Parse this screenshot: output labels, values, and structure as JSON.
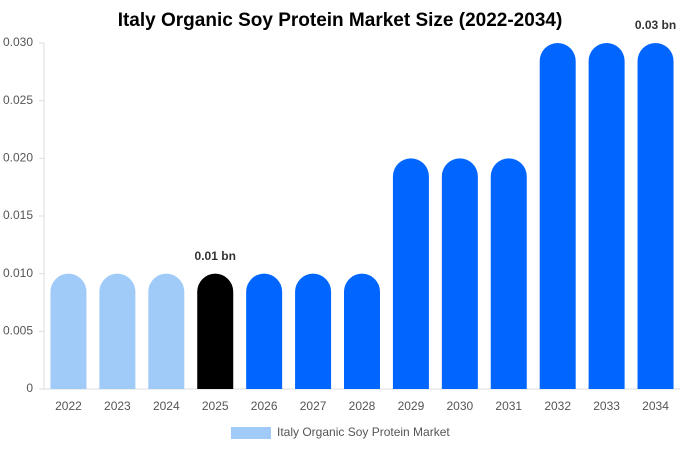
{
  "chart_data": {
    "type": "bar",
    "title": "Italy Organic Soy Protein Market Size (2022-2034)",
    "categories": [
      "2022",
      "2023",
      "2024",
      "2025",
      "2026",
      "2027",
      "2028",
      "2029",
      "2030",
      "2031",
      "2032",
      "2033",
      "2034"
    ],
    "series": [
      {
        "name": "Italy Organic Soy Protein Market",
        "color": "#a0cbf9",
        "values": [
          0.01,
          0.01,
          0.01,
          0.01,
          0.01,
          0.01,
          0.01,
          0.02,
          0.02,
          0.02,
          0.03,
          0.03,
          0.03
        ],
        "colors": [
          "#a0cbf9",
          "#a0cbf9",
          "#a0cbf9",
          "#000000",
          "#0066ff",
          "#0066ff",
          "#0066ff",
          "#0066ff",
          "#0066ff",
          "#0066ff",
          "#0066ff",
          "#0066ff",
          "#0066ff"
        ],
        "value_labels": [
          null,
          null,
          null,
          "0.01 bn",
          null,
          null,
          null,
          null,
          null,
          null,
          null,
          null,
          "0.03 bn"
        ]
      }
    ],
    "ylim": [
      0,
      0.03
    ],
    "yticks": [
      0,
      0.005,
      {
        "value": 0.01,
        "label": "0.010"
      },
      0.015,
      {
        "value": 0.02,
        "label": "0.020"
      },
      0.025,
      {
        "value": 0.03,
        "label": "0.030"
      }
    ],
    "grid": false,
    "legend": "bottom"
  }
}
